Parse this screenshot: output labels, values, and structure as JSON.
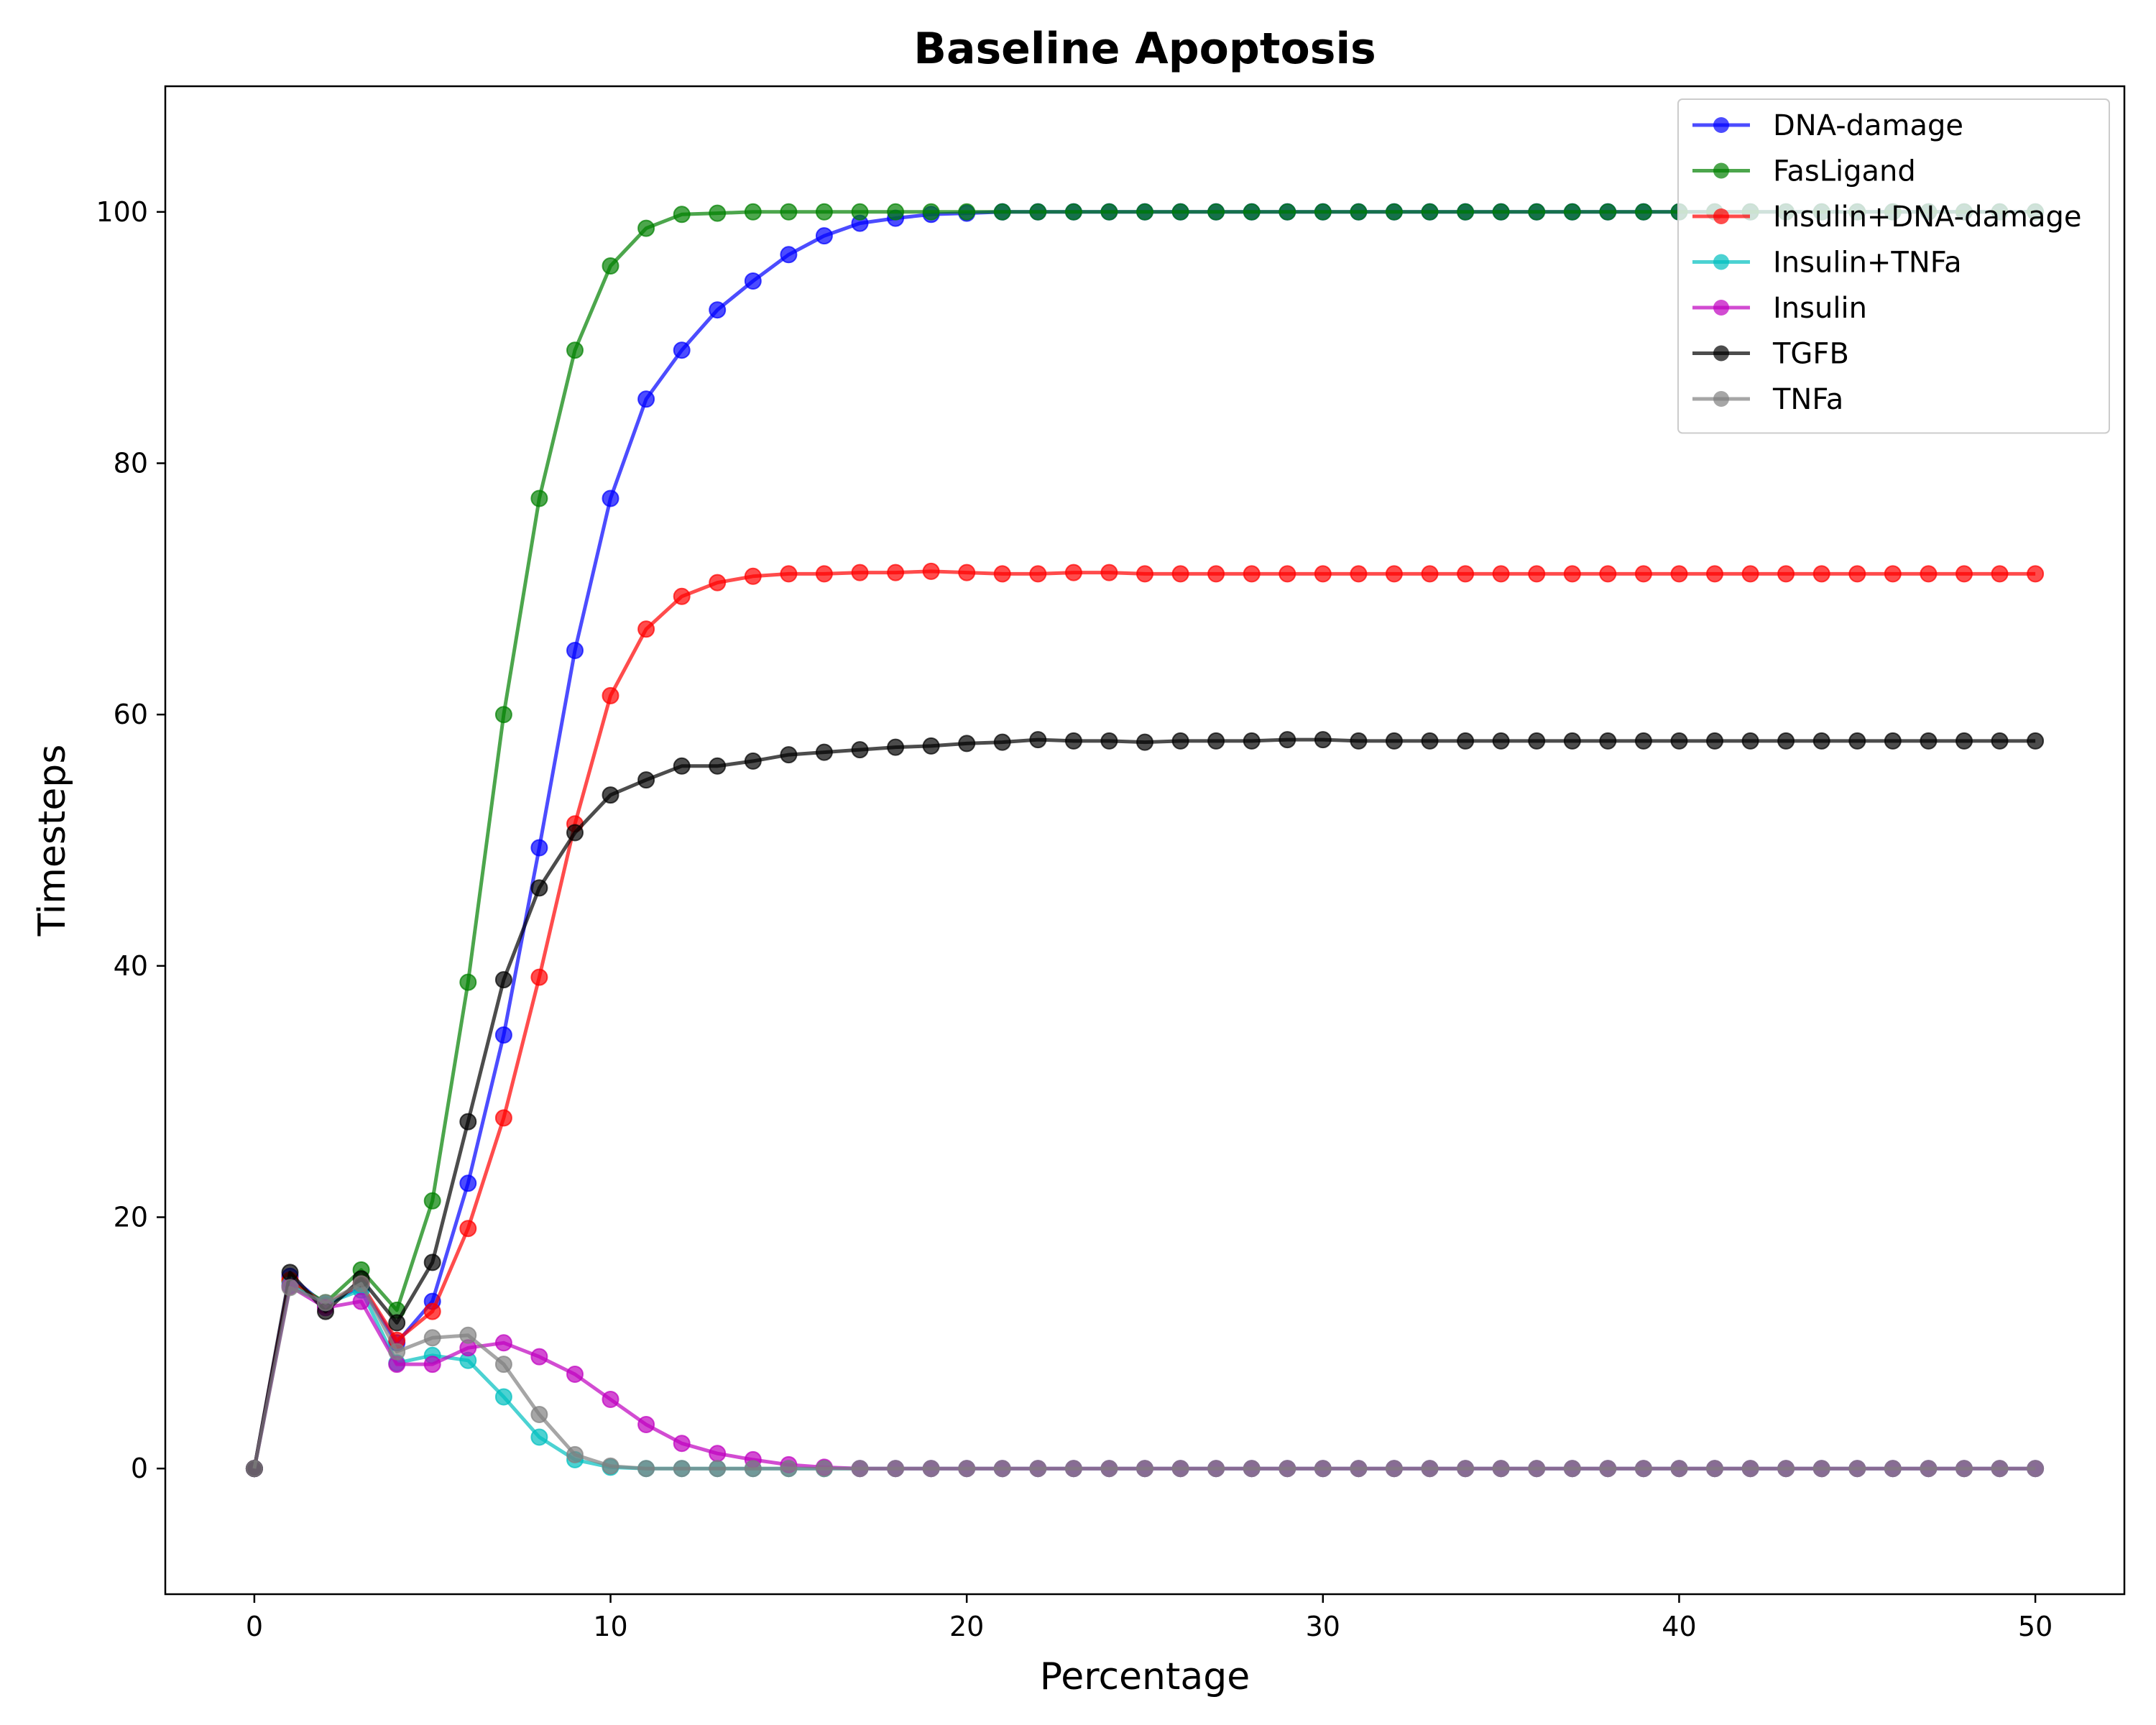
{
  "chart_data": {
    "type": "line",
    "title": "Baseline Apoptosis",
    "xlabel": "Percentage",
    "ylabel": "Timesteps",
    "xlim": [
      -2.5,
      52.5
    ],
    "ylim": [
      -10,
      110
    ],
    "xticks": [
      0,
      10,
      20,
      30,
      40,
      50
    ],
    "yticks": [
      0,
      20,
      40,
      60,
      80,
      100
    ],
    "grid": false,
    "legend_position": "top-right",
    "x": [
      0,
      1,
      2,
      3,
      4,
      5,
      6,
      7,
      8,
      9,
      10,
      11,
      12,
      13,
      14,
      15,
      16,
      17,
      18,
      19,
      20,
      21,
      22,
      23,
      24,
      25,
      26,
      27,
      28,
      29,
      30,
      31,
      32,
      33,
      34,
      35,
      36,
      37,
      38,
      39,
      40,
      41,
      42,
      43,
      44,
      45,
      46,
      47,
      48,
      49,
      50
    ],
    "series": [
      {
        "name": "DNA-damage",
        "color": "#0000ff",
        "values": [
          0,
          15.3,
          13.0,
          14.5,
          10.0,
          13.3,
          22.7,
          34.5,
          49.4,
          65.1,
          77.2,
          85.1,
          89.0,
          92.2,
          94.5,
          96.6,
          98.1,
          99.1,
          99.5,
          99.8,
          99.9,
          100,
          100,
          100,
          100,
          100,
          100,
          100,
          100,
          100,
          100,
          100,
          100,
          100,
          100,
          100,
          100,
          100,
          100,
          100,
          100,
          100,
          100,
          100,
          100,
          100,
          100,
          100,
          100,
          100,
          100
        ]
      },
      {
        "name": "FasLigand",
        "color": "#008000",
        "values": [
          0,
          14.9,
          13.2,
          15.8,
          12.6,
          21.3,
          38.7,
          60.0,
          77.2,
          89.0,
          95.7,
          98.7,
          99.8,
          99.9,
          100,
          100,
          100,
          100,
          100,
          100,
          100,
          100,
          100,
          100,
          100,
          100,
          100,
          100,
          100,
          100,
          100,
          100,
          100,
          100,
          100,
          100,
          100,
          100,
          100,
          100,
          100,
          100,
          100,
          100,
          100,
          100,
          100,
          100,
          100,
          100,
          100
        ]
      },
      {
        "name": "Insulin+DNA-damage",
        "color": "#ff0000",
        "values": [
          0,
          15.0,
          13.0,
          14.7,
          10.2,
          12.5,
          19.1,
          27.9,
          39.1,
          51.3,
          61.5,
          66.8,
          69.4,
          70.5,
          71.0,
          71.2,
          71.2,
          71.3,
          71.3,
          71.4,
          71.3,
          71.2,
          71.2,
          71.3,
          71.3,
          71.2,
          71.2,
          71.2,
          71.2,
          71.2,
          71.2,
          71.2,
          71.2,
          71.2,
          71.2,
          71.2,
          71.2,
          71.2,
          71.2,
          71.2,
          71.2,
          71.2,
          71.2,
          71.2,
          71.2,
          71.2,
          71.2,
          71.2,
          71.2,
          71.2,
          71.2
        ]
      },
      {
        "name": "Insulin+TNFa",
        "color": "#00bfbf",
        "values": [
          0,
          14.6,
          13.1,
          14.2,
          8.4,
          9.0,
          8.6,
          5.7,
          2.5,
          0.7,
          0.1,
          0,
          0,
          0,
          0,
          0,
          0,
          0,
          0,
          0,
          0,
          0,
          0,
          0,
          0,
          0,
          0,
          0,
          0,
          0,
          0,
          0,
          0,
          0,
          0,
          0,
          0,
          0,
          0,
          0,
          0,
          0,
          0,
          0,
          0,
          0,
          0,
          0,
          0,
          0,
          0
        ]
      },
      {
        "name": "Insulin",
        "color": "#bf00bf",
        "values": [
          0,
          14.5,
          12.8,
          13.3,
          8.3,
          8.3,
          9.6,
          10.0,
          8.9,
          7.5,
          5.5,
          3.5,
          2.0,
          1.2,
          0.7,
          0.3,
          0.1,
          0,
          0,
          0,
          0,
          0,
          0,
          0,
          0,
          0,
          0,
          0,
          0,
          0,
          0,
          0,
          0,
          0,
          0,
          0,
          0,
          0,
          0,
          0,
          0,
          0,
          0,
          0,
          0,
          0,
          0,
          0,
          0,
          0,
          0
        ]
      },
      {
        "name": "TGFB",
        "color": "#000000",
        "values": [
          0,
          15.6,
          12.5,
          15.1,
          11.6,
          16.4,
          27.6,
          38.9,
          46.2,
          50.6,
          53.6,
          54.8,
          55.9,
          55.9,
          56.3,
          56.8,
          57.0,
          57.2,
          57.4,
          57.5,
          57.7,
          57.8,
          58.0,
          57.9,
          57.9,
          57.8,
          57.9,
          57.9,
          57.9,
          58.0,
          58.0,
          57.9,
          57.9,
          57.9,
          57.9,
          57.9,
          57.9,
          57.9,
          57.9,
          57.9,
          57.9,
          57.9,
          57.9,
          57.9,
          57.9,
          57.9,
          57.9,
          57.9,
          57.9,
          57.9,
          57.9
        ]
      },
      {
        "name": "TNFa",
        "color": "#808080",
        "values": [
          0,
          14.4,
          13.2,
          14.7,
          9.3,
          10.4,
          10.6,
          8.3,
          4.3,
          1.1,
          0.2,
          0,
          0,
          0,
          0,
          0,
          0,
          0,
          0,
          0,
          0,
          0,
          0,
          0,
          0,
          0,
          0,
          0,
          0,
          0,
          0,
          0,
          0,
          0,
          0,
          0,
          0,
          0,
          0,
          0,
          0,
          0,
          0,
          0,
          0,
          0,
          0,
          0,
          0,
          0,
          0
        ]
      }
    ]
  }
}
